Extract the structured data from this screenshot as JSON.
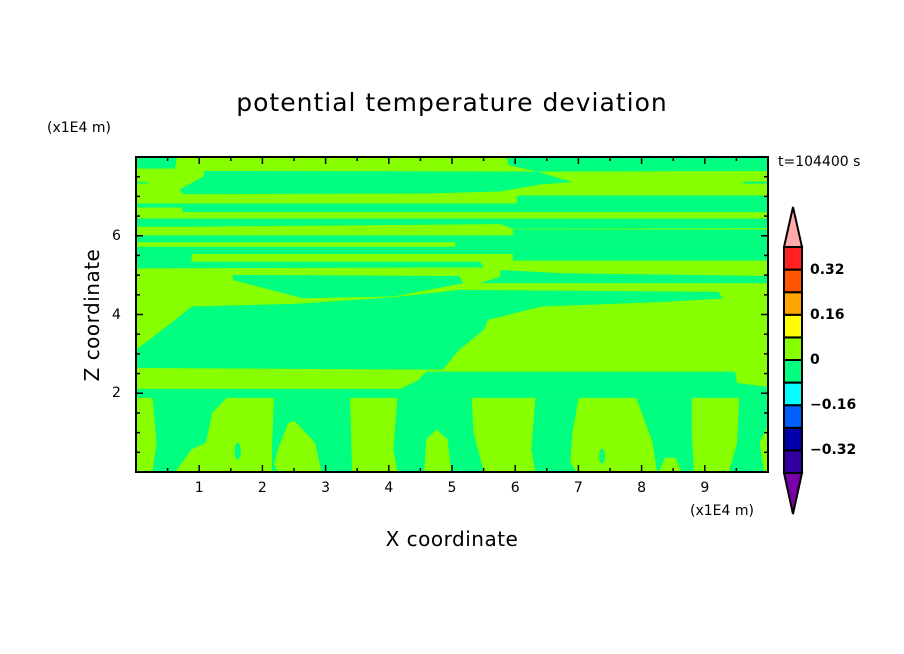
{
  "chart_data": {
    "type": "contour",
    "title": "potential temperature deviation",
    "xlabel": "X coordinate",
    "ylabel": "Z coordinate",
    "x_unit": "(x1E4 m)",
    "y_unit": "(x1E4 m)",
    "xlim": [
      0,
      10
    ],
    "ylim": [
      0,
      8
    ],
    "xticks": [
      "1",
      "2",
      "3",
      "4",
      "5",
      "6",
      "7",
      "8",
      "9"
    ],
    "yticks": [
      "2",
      "4",
      "6"
    ],
    "annotation": "t=104400 s",
    "grid": false,
    "colorbar": {
      "levels": [
        -0.4,
        -0.32,
        -0.24,
        -0.16,
        -0.08,
        0,
        0.08,
        0.16,
        0.24,
        0.32,
        0.4
      ],
      "colors": [
        "#3300a0",
        "#0000a8",
        "#0060ff",
        "#00ffff",
        "#00ff80",
        "#88ff00",
        "#ffff00",
        "#ffa500",
        "#ff5500",
        "#ff2020"
      ],
      "under_color": "#7a00a8",
      "over_color": "#ffaaaa",
      "tick_labels": [
        {
          "value": 0.32,
          "label": "0.32"
        },
        {
          "value": 0.16,
          "label": "0.16"
        },
        {
          "value": 0,
          "label": "0"
        },
        {
          "value": -0.16,
          "label": "−0.16"
        },
        {
          "value": -0.32,
          "label": "−0.32"
        }
      ],
      "extend": "both"
    },
    "field_ranges_present": [
      [
        -0.08,
        0
      ],
      [
        0,
        0.08
      ]
    ],
    "description_colors": {
      "negative_band": "#00ff80",
      "positive_band": "#88ff00"
    }
  }
}
